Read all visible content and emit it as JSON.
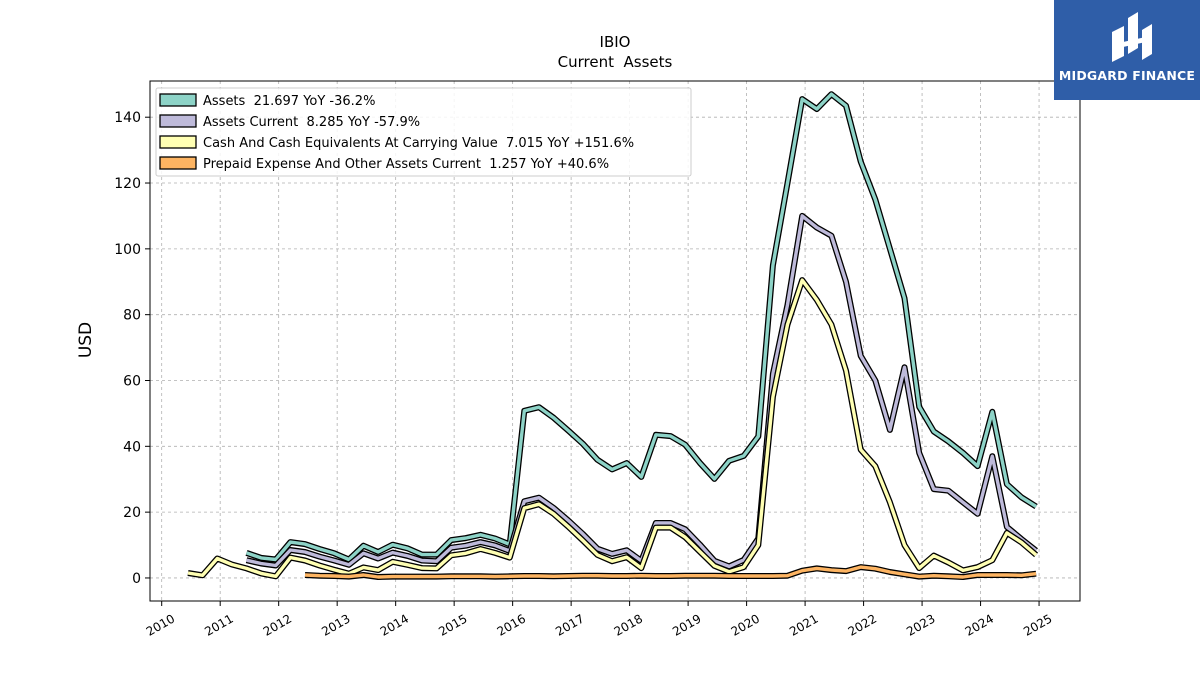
{
  "brand": {
    "name": "MIDGARD FINANCE",
    "bg_color": "#2f5ea8",
    "icon": "midgard-logo-icon"
  },
  "chart_data": {
    "type": "line",
    "title": "IBIO",
    "subtitle": "Current  Assets",
    "xlabel": "",
    "ylabel": "USD",
    "xlim": [
      2009.8,
      2025.7
    ],
    "ylim": [
      -7,
      151
    ],
    "xticks": [
      2010,
      2011,
      2012,
      2013,
      2014,
      2015,
      2016,
      2017,
      2018,
      2019,
      2020,
      2021,
      2022,
      2023,
      2024,
      2025
    ],
    "yticks": [
      0,
      20,
      40,
      60,
      80,
      100,
      120,
      140
    ],
    "grid": true,
    "legend_position": "top-left",
    "series": [
      {
        "name": "Assets  21.697 YoY -36.2%",
        "color": "#8dd3c7",
        "data": [
          [
            2011.45,
            7.6
          ],
          [
            2011.7,
            6.1
          ],
          [
            2011.95,
            5.6
          ],
          [
            2012.2,
            10.9
          ],
          [
            2012.45,
            10.3
          ],
          [
            2012.7,
            8.8
          ],
          [
            2012.95,
            7.5
          ],
          [
            2013.2,
            5.6
          ],
          [
            2013.45,
            9.8
          ],
          [
            2013.7,
            7.9
          ],
          [
            2013.95,
            10.1
          ],
          [
            2014.2,
            9.0
          ],
          [
            2014.45,
            7.1
          ],
          [
            2014.7,
            7.1
          ],
          [
            2014.95,
            11.5
          ],
          [
            2015.2,
            12.1
          ],
          [
            2015.45,
            13.1
          ],
          [
            2015.7,
            12.0
          ],
          [
            2015.95,
            10.2
          ],
          [
            2016.2,
            50.8
          ],
          [
            2016.45,
            51.9
          ],
          [
            2016.7,
            48.7
          ],
          [
            2016.95,
            44.8
          ],
          [
            2017.2,
            40.8
          ],
          [
            2017.45,
            35.9
          ],
          [
            2017.7,
            33.0
          ],
          [
            2017.95,
            34.9
          ],
          [
            2018.2,
            30.7
          ],
          [
            2018.45,
            43.5
          ],
          [
            2018.7,
            43.1
          ],
          [
            2018.95,
            40.5
          ],
          [
            2019.2,
            35.0
          ],
          [
            2019.45,
            30.1
          ],
          [
            2019.7,
            35.6
          ],
          [
            2019.95,
            37.1
          ],
          [
            2020.2,
            43.0
          ],
          [
            2020.45,
            95.0
          ],
          [
            2020.7,
            120.0
          ],
          [
            2020.95,
            145.5
          ],
          [
            2021.2,
            142.5
          ],
          [
            2021.45,
            147.0
          ],
          [
            2021.7,
            143.5
          ],
          [
            2021.95,
            126.5
          ],
          [
            2022.2,
            115.0
          ],
          [
            2022.45,
            100.0
          ],
          [
            2022.7,
            85.0
          ],
          [
            2022.95,
            52.0
          ],
          [
            2023.2,
            44.5
          ],
          [
            2023.45,
            41.5
          ],
          [
            2023.7,
            38.0
          ],
          [
            2023.95,
            34.0
          ],
          [
            2024.2,
            50.5
          ],
          [
            2024.45,
            28.5
          ],
          [
            2024.7,
            24.5
          ],
          [
            2024.95,
            21.7
          ]
        ]
      },
      {
        "name": "Assets Current  8.285 YoY -57.9%",
        "color": "#bebada",
        "data": [
          [
            2011.45,
            5.4
          ],
          [
            2011.7,
            4.4
          ],
          [
            2011.95,
            3.8
          ],
          [
            2012.2,
            8.5
          ],
          [
            2012.45,
            7.9
          ],
          [
            2012.7,
            6.5
          ],
          [
            2012.95,
            5.3
          ],
          [
            2013.2,
            4.0
          ],
          [
            2013.45,
            7.5
          ],
          [
            2013.7,
            5.9
          ],
          [
            2013.95,
            7.7
          ],
          [
            2014.2,
            6.7
          ],
          [
            2014.45,
            5.3
          ],
          [
            2014.7,
            5.1
          ],
          [
            2014.95,
            9.2
          ],
          [
            2015.2,
            9.8
          ],
          [
            2015.45,
            10.9
          ],
          [
            2015.7,
            9.9
          ],
          [
            2015.95,
            8.2
          ],
          [
            2016.2,
            23.3
          ],
          [
            2016.45,
            24.4
          ],
          [
            2016.7,
            21.3
          ],
          [
            2016.95,
            17.5
          ],
          [
            2017.2,
            13.4
          ],
          [
            2017.45,
            8.9
          ],
          [
            2017.7,
            7.3
          ],
          [
            2017.95,
            8.4
          ],
          [
            2018.2,
            5.2
          ],
          [
            2018.45,
            16.7
          ],
          [
            2018.7,
            16.7
          ],
          [
            2018.95,
            14.8
          ],
          [
            2019.2,
            10.2
          ],
          [
            2019.45,
            5.2
          ],
          [
            2019.7,
            3.5
          ],
          [
            2019.95,
            5.5
          ],
          [
            2020.2,
            12.0
          ],
          [
            2020.45,
            62.0
          ],
          [
            2020.7,
            83.0
          ],
          [
            2020.95,
            110.0
          ],
          [
            2021.2,
            106.5
          ],
          [
            2021.45,
            104.0
          ],
          [
            2021.7,
            90.0
          ],
          [
            2021.95,
            67.5
          ],
          [
            2022.2,
            60.0
          ],
          [
            2022.45,
            45.0
          ],
          [
            2022.7,
            64.0
          ],
          [
            2022.95,
            38.0
          ],
          [
            2023.2,
            27.0
          ],
          [
            2023.45,
            26.5
          ],
          [
            2023.7,
            23.0
          ],
          [
            2023.95,
            19.5
          ],
          [
            2024.2,
            37.0
          ],
          [
            2024.45,
            15.5
          ],
          [
            2024.7,
            11.8
          ],
          [
            2024.95,
            8.3
          ]
        ]
      },
      {
        "name": "Cash And Cash Equivalents At Carrying Value  7.015 YoY +151.6%",
        "color": "#ffffb3",
        "data": [
          [
            2010.45,
            1.5
          ],
          [
            2010.7,
            0.8
          ],
          [
            2010.95,
            5.9
          ],
          [
            2011.2,
            4.1
          ],
          [
            2011.45,
            2.9
          ],
          [
            2011.7,
            1.4
          ],
          [
            2011.95,
            0.5
          ],
          [
            2012.2,
            6.2
          ],
          [
            2012.45,
            5.3
          ],
          [
            2012.7,
            3.8
          ],
          [
            2012.95,
            2.5
          ],
          [
            2013.2,
            1.3
          ],
          [
            2013.45,
            3.2
          ],
          [
            2013.7,
            2.4
          ],
          [
            2013.95,
            4.9
          ],
          [
            2014.2,
            4.0
          ],
          [
            2014.45,
            3.0
          ],
          [
            2014.7,
            2.9
          ],
          [
            2014.95,
            6.9
          ],
          [
            2015.2,
            7.5
          ],
          [
            2015.45,
            8.8
          ],
          [
            2015.7,
            7.6
          ],
          [
            2015.95,
            6.2
          ],
          [
            2016.2,
            21.2
          ],
          [
            2016.45,
            22.4
          ],
          [
            2016.7,
            19.5
          ],
          [
            2016.95,
            15.6
          ],
          [
            2017.2,
            11.4
          ],
          [
            2017.45,
            7.0
          ],
          [
            2017.7,
            5.1
          ],
          [
            2017.95,
            6.3
          ],
          [
            2018.2,
            3.0
          ],
          [
            2018.45,
            15.3
          ],
          [
            2018.7,
            15.3
          ],
          [
            2018.95,
            12.4
          ],
          [
            2019.2,
            8.0
          ],
          [
            2019.45,
            3.7
          ],
          [
            2019.7,
            1.9
          ],
          [
            2019.95,
            3.3
          ],
          [
            2020.2,
            10.0
          ],
          [
            2020.45,
            55.0
          ],
          [
            2020.7,
            77.0
          ],
          [
            2020.95,
            90.5
          ],
          [
            2021.2,
            84.5
          ],
          [
            2021.45,
            77.0
          ],
          [
            2021.7,
            63.0
          ],
          [
            2021.95,
            39.0
          ],
          [
            2022.2,
            34.0
          ],
          [
            2022.45,
            23.0
          ],
          [
            2022.7,
            10.0
          ],
          [
            2022.95,
            3.0
          ],
          [
            2023.2,
            6.8
          ],
          [
            2023.45,
            4.7
          ],
          [
            2023.7,
            2.3
          ],
          [
            2023.95,
            3.3
          ],
          [
            2024.2,
            5.4
          ],
          [
            2024.45,
            13.7
          ],
          [
            2024.7,
            10.8
          ],
          [
            2024.95,
            7.0
          ]
        ]
      },
      {
        "name": "Prepaid Expense And Other Assets Current  1.257 YoY +40.6%",
        "color": "#fdb462",
        "data": [
          [
            2012.45,
            0.9
          ],
          [
            2012.7,
            0.7
          ],
          [
            2012.95,
            0.6
          ],
          [
            2013.2,
            0.4
          ],
          [
            2013.45,
            0.9
          ],
          [
            2013.7,
            0.3
          ],
          [
            2013.95,
            0.4
          ],
          [
            2014.2,
            0.4
          ],
          [
            2014.45,
            0.4
          ],
          [
            2014.7,
            0.4
          ],
          [
            2014.95,
            0.5
          ],
          [
            2015.2,
            0.5
          ],
          [
            2015.45,
            0.5
          ],
          [
            2015.7,
            0.4
          ],
          [
            2015.95,
            0.5
          ],
          [
            2016.2,
            0.6
          ],
          [
            2016.45,
            0.6
          ],
          [
            2016.7,
            0.5
          ],
          [
            2016.95,
            0.6
          ],
          [
            2017.2,
            0.7
          ],
          [
            2017.45,
            0.7
          ],
          [
            2017.7,
            0.6
          ],
          [
            2017.95,
            0.6
          ],
          [
            2018.2,
            0.7
          ],
          [
            2018.45,
            0.6
          ],
          [
            2018.7,
            0.6
          ],
          [
            2018.95,
            0.7
          ],
          [
            2019.2,
            0.7
          ],
          [
            2019.45,
            0.7
          ],
          [
            2019.7,
            0.6
          ],
          [
            2019.95,
            0.6
          ],
          [
            2020.2,
            0.6
          ],
          [
            2020.45,
            0.6
          ],
          [
            2020.7,
            0.7
          ],
          [
            2020.95,
            2.2
          ],
          [
            2021.2,
            2.9
          ],
          [
            2021.45,
            2.4
          ],
          [
            2021.7,
            2.1
          ],
          [
            2021.95,
            3.3
          ],
          [
            2022.2,
            2.8
          ],
          [
            2022.45,
            1.8
          ],
          [
            2022.7,
            1.1
          ],
          [
            2022.95,
            0.4
          ],
          [
            2023.2,
            0.7
          ],
          [
            2023.45,
            0.5
          ],
          [
            2023.7,
            0.3
          ],
          [
            2023.95,
            0.9
          ],
          [
            2024.2,
            0.9
          ],
          [
            2024.45,
            0.9
          ],
          [
            2024.7,
            0.8
          ],
          [
            2024.95,
            1.3
          ]
        ]
      }
    ]
  }
}
